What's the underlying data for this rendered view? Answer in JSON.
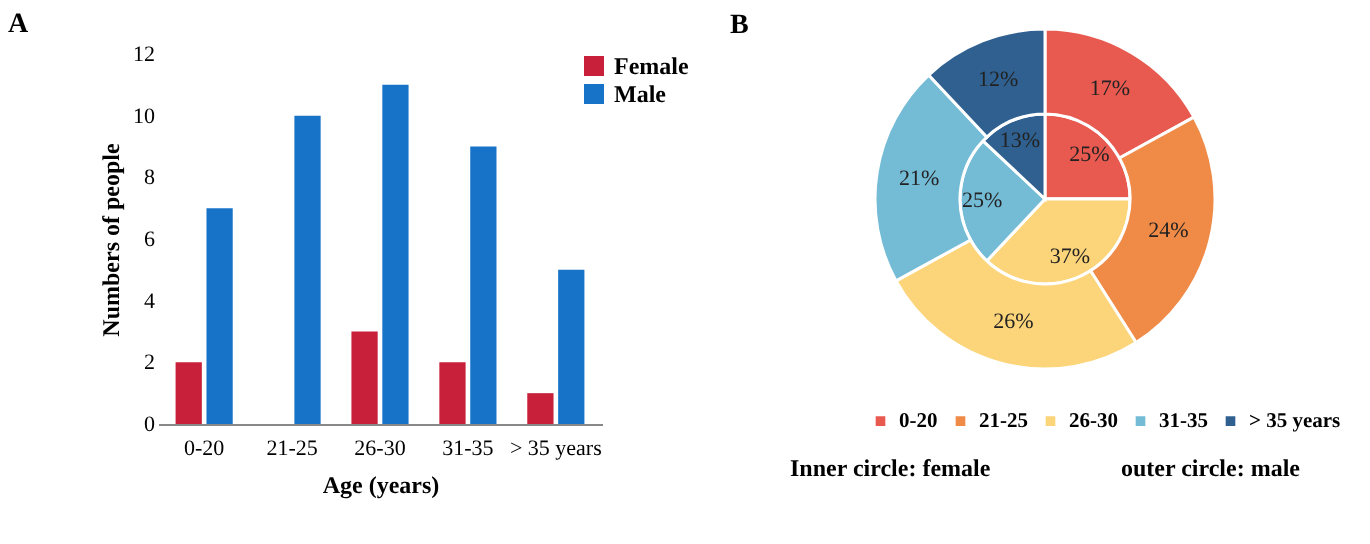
{
  "chart_data": [
    {
      "type": "bar",
      "title": "A",
      "xlabel": "Age (years)",
      "ylabel": "Numbers of people",
      "categories": [
        "0-20",
        "21-25",
        "26-30",
        "31-35",
        "> 35 years"
      ],
      "series": [
        {
          "name": "Female",
          "color": "#c8203a",
          "values": [
            2,
            0,
            3,
            2,
            1
          ]
        },
        {
          "name": "Male",
          "color": "#1773c8",
          "values": [
            7,
            10,
            11,
            9,
            5
          ]
        }
      ],
      "ylim": [
        0,
        12
      ],
      "yticks": [
        0,
        2,
        4,
        6,
        8,
        10,
        12
      ],
      "grid": false,
      "legend": "right"
    },
    {
      "type": "donut",
      "title": "B",
      "categories": [
        "0-20",
        "21-25",
        "26-30",
        "31-35",
        "> 35 years"
      ],
      "colors": [
        "#e8594f",
        "#ef8a47",
        "#fcd57a",
        "#74bbd6",
        "#2f6090"
      ],
      "series": [
        {
          "values": [
            25,
            0,
            37,
            25,
            13
          ],
          "value_labels": [
            "25%",
            null,
            "37%",
            "25%",
            "13%"
          ]
        },
        {
          "values": [
            17,
            24,
            26,
            21,
            12
          ],
          "value_labels": [
            "17%",
            "24%",
            "26%",
            "21%",
            "12%"
          ]
        }
      ],
      "legend": "bottom",
      "annotations": [
        "Inner circle: female",
        "outer circle: male"
      ]
    }
  ]
}
